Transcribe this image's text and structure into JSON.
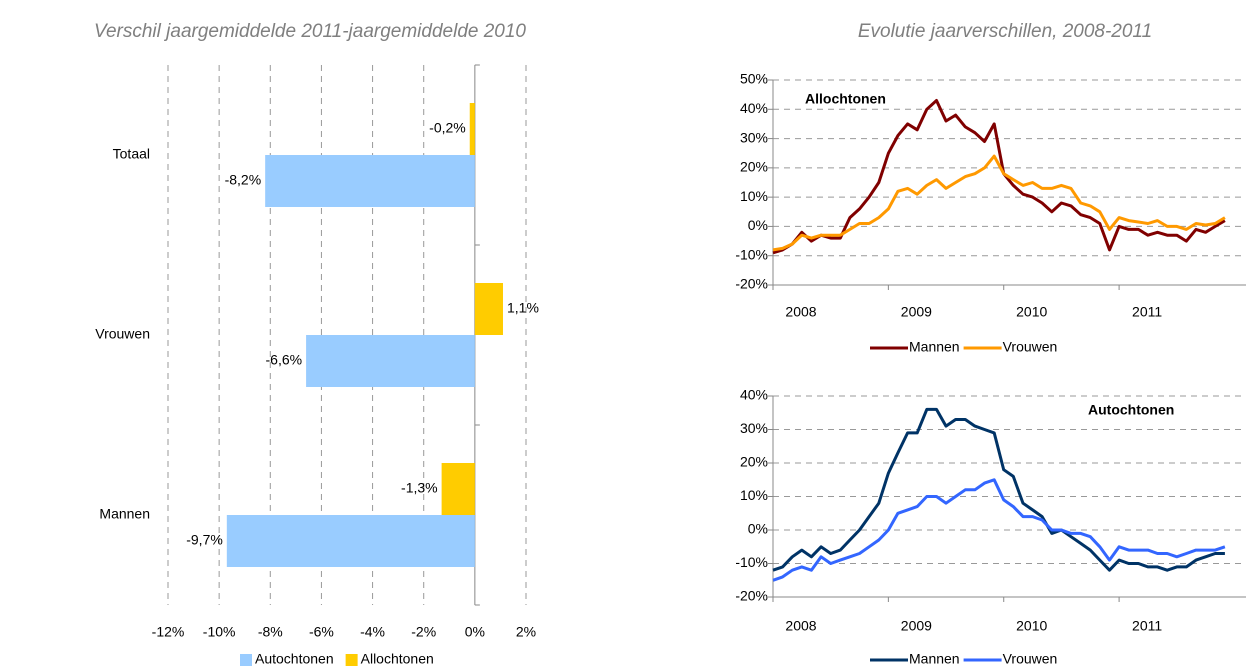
{
  "chart_data": [
    {
      "type": "bar",
      "title": "Verschil jaargemiddelde 2011-jaargemiddelde 2010",
      "categories": [
        "Totaal",
        "Vrouwen",
        "Mannen"
      ],
      "series": [
        {
          "name": "Autochtonen",
          "color": "#99ccff",
          "values": [
            -8.2,
            -6.6,
            -9.7
          ],
          "value_labels": [
            "-8,2%",
            "-6,6%",
            "-9,7%"
          ]
        },
        {
          "name": "Allochtonen",
          "color": "#ffcc00",
          "values": [
            -0.2,
            1.1,
            -1.3
          ],
          "value_labels": [
            "-0,2%",
            "1,1%",
            "-1,3%"
          ]
        }
      ],
      "xlim": [
        -12,
        2
      ],
      "xticks": [
        {
          "value": -12,
          "label": "-12%"
        },
        {
          "value": -10,
          "label": "-10%"
        },
        {
          "value": -8,
          "label": "-8%"
        },
        {
          "value": -6,
          "label": "-6%"
        },
        {
          "value": -4,
          "label": "-4%"
        },
        {
          "value": -2,
          "label": "-2%"
        },
        {
          "value": 0,
          "label": "0%"
        },
        {
          "value": 2,
          "label": "2%"
        }
      ],
      "grid": true,
      "legend": "bottom"
    },
    {
      "type": "line",
      "title": "Evolutie jaarverschillen, 2008-2011",
      "annotation": "Allochtonen",
      "x": [
        2008,
        2008.083,
        2008.167,
        2008.25,
        2008.333,
        2008.417,
        2008.5,
        2008.583,
        2008.667,
        2008.75,
        2008.833,
        2008.917,
        2009,
        2009.083,
        2009.167,
        2009.25,
        2009.333,
        2009.417,
        2009.5,
        2009.583,
        2009.667,
        2009.75,
        2009.833,
        2009.917,
        2010,
        2010.083,
        2010.167,
        2010.25,
        2010.333,
        2010.417,
        2010.5,
        2010.583,
        2010.667,
        2010.75,
        2010.833,
        2010.917,
        2011,
        2011.083,
        2011.167,
        2011.25,
        2011.333,
        2011.417,
        2011.5,
        2011.583,
        2011.667,
        2011.75,
        2011.833,
        2011.917
      ],
      "series": [
        {
          "name": "Mannen",
          "color": "#800000",
          "values": [
            -9,
            -8,
            -6,
            -2,
            -5,
            -3,
            -4,
            -4,
            3,
            6,
            10,
            15,
            25,
            31,
            35,
            33,
            40,
            43,
            36,
            38,
            34,
            32,
            29,
            35,
            18,
            14,
            11,
            10,
            8,
            5,
            8,
            7,
            4,
            3,
            1,
            -8,
            0,
            -1,
            -1,
            -3,
            -2,
            -3,
            -3,
            -5,
            -1,
            -2,
            0,
            2
          ]
        },
        {
          "name": "Vrouwen",
          "color": "#ff9900",
          "values": [
            -8,
            -7.5,
            -6,
            -3,
            -4,
            -3,
            -3,
            -3,
            -1,
            1,
            1,
            3,
            6,
            12,
            13,
            11,
            14,
            16,
            13,
            15,
            17,
            18,
            20,
            24,
            18,
            16,
            14,
            15,
            13,
            13,
            14,
            13,
            8,
            7,
            5,
            -1,
            3,
            2,
            1.5,
            1,
            2,
            0,
            0,
            -1,
            1,
            0.5,
            1,
            3
          ]
        }
      ],
      "xlim": [
        2008,
        2012.1
      ],
      "xticks": [
        2008,
        2009,
        2010,
        2011
      ],
      "ylim": [
        -20,
        50
      ],
      "yticks": [
        {
          "value": -20,
          "label": "-20%"
        },
        {
          "value": -10,
          "label": "-10%"
        },
        {
          "value": 0,
          "label": "0%"
        },
        {
          "value": 10,
          "label": "10%"
        },
        {
          "value": 20,
          "label": "20%"
        },
        {
          "value": 30,
          "label": "30%"
        },
        {
          "value": 40,
          "label": "40%"
        },
        {
          "value": 50,
          "label": "50%"
        }
      ],
      "grid": true,
      "legend": "bottom"
    },
    {
      "type": "line",
      "annotation": "Autochtonen",
      "x": [
        2008,
        2008.083,
        2008.167,
        2008.25,
        2008.333,
        2008.417,
        2008.5,
        2008.583,
        2008.667,
        2008.75,
        2008.833,
        2008.917,
        2009,
        2009.083,
        2009.167,
        2009.25,
        2009.333,
        2009.417,
        2009.5,
        2009.583,
        2009.667,
        2009.75,
        2009.833,
        2009.917,
        2010,
        2010.083,
        2010.167,
        2010.25,
        2010.333,
        2010.417,
        2010.5,
        2010.583,
        2010.667,
        2010.75,
        2010.833,
        2010.917,
        2011,
        2011.083,
        2011.167,
        2011.25,
        2011.333,
        2011.417,
        2011.5,
        2011.583,
        2011.667,
        2011.75,
        2011.833,
        2011.917
      ],
      "series": [
        {
          "name": "Mannen",
          "color": "#003366",
          "values": [
            -12,
            -11,
            -8,
            -6,
            -8,
            -5,
            -7,
            -6,
            -3,
            0,
            4,
            8,
            17,
            23,
            29,
            29,
            36,
            36,
            31,
            33,
            33,
            31,
            30,
            29,
            18,
            16,
            8,
            6,
            4,
            -1,
            0,
            -2,
            -4,
            -6,
            -9,
            -12,
            -9,
            -10,
            -10,
            -11,
            -11,
            -12,
            -11,
            -11,
            -9,
            -8,
            -7,
            -7
          ]
        },
        {
          "name": "Vrouwen",
          "color": "#3366ff",
          "values": [
            -15,
            -14,
            -12,
            -11,
            -12,
            -8,
            -10,
            -9,
            -8,
            -7,
            -5,
            -3,
            0,
            5,
            6,
            7,
            10,
            10,
            8,
            10,
            12,
            12,
            14,
            15,
            9,
            7,
            4,
            4,
            3,
            0,
            0,
            -1,
            -1,
            -2,
            -5,
            -9,
            -5,
            -6,
            -6,
            -6,
            -7,
            -7,
            -8,
            -7,
            -6,
            -6,
            -6,
            -5
          ]
        }
      ],
      "xlim": [
        2008,
        2012.1
      ],
      "xticks": [
        2008,
        2009,
        2010,
        2011
      ],
      "ylim": [
        -20,
        40
      ],
      "yticks": [
        {
          "value": -20,
          "label": "-20%"
        },
        {
          "value": -10,
          "label": "-10%"
        },
        {
          "value": 0,
          "label": "0%"
        },
        {
          "value": 10,
          "label": "10%"
        },
        {
          "value": 20,
          "label": "20%"
        },
        {
          "value": 30,
          "label": "30%"
        },
        {
          "value": 40,
          "label": "40%"
        }
      ],
      "grid": true,
      "legend": "bottom"
    }
  ]
}
